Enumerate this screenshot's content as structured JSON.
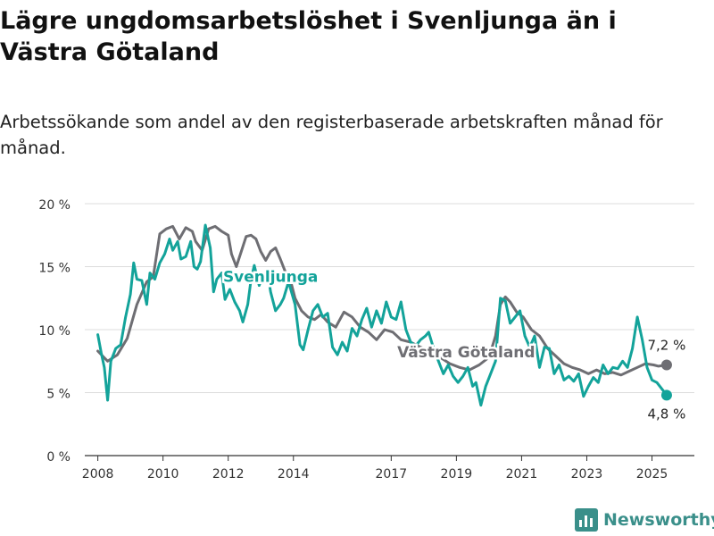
{
  "title": "Lägre ungdomsarbetslöshet i Svenljunga än i Västra Götaland",
  "subtitle": "Arbetssökande som andel av den registerbaserade arbetskraften månad för månad.",
  "brand": {
    "name": "Newsworthy",
    "color": "#3a8f8a"
  },
  "chart_data": {
    "type": "line",
    "x_unit": "year",
    "xlim": [
      2007.6,
      2026.3
    ],
    "ylim": [
      0,
      20
    ],
    "y_ticks": [
      0,
      5,
      10,
      15,
      20
    ],
    "y_tick_labels": [
      "0 %",
      "5 %",
      "10 %",
      "15 %",
      "20 %"
    ],
    "x_ticks": [
      2008,
      2010,
      2012,
      2014,
      2017,
      2019,
      2021,
      2023,
      2025
    ],
    "x_tick_labels": [
      "2008",
      "2010",
      "2012",
      "2014",
      "2017",
      "2019",
      "2021",
      "2023",
      "2025"
    ],
    "grid": "horizontal",
    "series": [
      {
        "name": "Västra Götaland",
        "color": "#6e6e73",
        "end_label": "7,2 %",
        "points": [
          [
            2008.0,
            8.3
          ],
          [
            2008.3,
            7.5
          ],
          [
            2008.6,
            8.0
          ],
          [
            2008.9,
            9.3
          ],
          [
            2009.2,
            12.0
          ],
          [
            2009.5,
            13.8
          ],
          [
            2009.7,
            14.2
          ],
          [
            2009.9,
            17.6
          ],
          [
            2010.1,
            18.0
          ],
          [
            2010.3,
            18.2
          ],
          [
            2010.5,
            17.2
          ],
          [
            2010.7,
            18.1
          ],
          [
            2010.9,
            17.8
          ],
          [
            2011.0,
            17.0
          ],
          [
            2011.2,
            16.3
          ],
          [
            2011.4,
            18.0
          ],
          [
            2011.6,
            18.2
          ],
          [
            2011.8,
            17.8
          ],
          [
            2012.0,
            17.5
          ],
          [
            2012.1,
            16.0
          ],
          [
            2012.25,
            15.0
          ],
          [
            2012.4,
            16.2
          ],
          [
            2012.55,
            17.4
          ],
          [
            2012.7,
            17.5
          ],
          [
            2012.85,
            17.2
          ],
          [
            2013.0,
            16.2
          ],
          [
            2013.15,
            15.5
          ],
          [
            2013.3,
            16.2
          ],
          [
            2013.45,
            16.5
          ],
          [
            2013.6,
            15.6
          ],
          [
            2013.75,
            14.6
          ],
          [
            2013.9,
            14.0
          ],
          [
            2014.05,
            12.5
          ],
          [
            2014.25,
            11.5
          ],
          [
            2014.45,
            11.0
          ],
          [
            2014.65,
            10.8
          ],
          [
            2014.85,
            11.2
          ],
          [
            2015.05,
            10.6
          ],
          [
            2015.3,
            10.2
          ],
          [
            2015.55,
            11.4
          ],
          [
            2015.8,
            11.0
          ],
          [
            2016.05,
            10.2
          ],
          [
            2016.3,
            9.8
          ],
          [
            2016.55,
            9.2
          ],
          [
            2016.8,
            10.0
          ],
          [
            2017.05,
            9.8
          ],
          [
            2017.3,
            9.2
          ],
          [
            2017.6,
            9.0
          ],
          [
            2017.9,
            8.6
          ],
          [
            2018.2,
            8.3
          ],
          [
            2018.5,
            7.8
          ],
          [
            2018.8,
            7.3
          ],
          [
            2019.1,
            7.0
          ],
          [
            2019.4,
            6.8
          ],
          [
            2019.7,
            7.2
          ],
          [
            2020.0,
            7.8
          ],
          [
            2020.2,
            9.5
          ],
          [
            2020.35,
            12.0
          ],
          [
            2020.5,
            12.6
          ],
          [
            2020.65,
            12.2
          ],
          [
            2020.85,
            11.4
          ],
          [
            2021.05,
            11.0
          ],
          [
            2021.3,
            10.0
          ],
          [
            2021.55,
            9.5
          ],
          [
            2021.8,
            8.5
          ],
          [
            2022.05,
            7.9
          ],
          [
            2022.3,
            7.3
          ],
          [
            2022.55,
            7.0
          ],
          [
            2022.8,
            6.8
          ],
          [
            2023.05,
            6.5
          ],
          [
            2023.3,
            6.8
          ],
          [
            2023.55,
            6.5
          ],
          [
            2023.8,
            6.6
          ],
          [
            2024.05,
            6.4
          ],
          [
            2024.3,
            6.7
          ],
          [
            2024.55,
            7.0
          ],
          [
            2024.8,
            7.3
          ],
          [
            2025.05,
            7.2
          ],
          [
            2025.2,
            7.1
          ],
          [
            2025.45,
            7.2
          ]
        ]
      },
      {
        "name": "Svenljunga",
        "color": "#13a39a",
        "end_label": "4,8 %",
        "points": [
          [
            2008.0,
            9.6
          ],
          [
            2008.1,
            8.2
          ],
          [
            2008.2,
            7.0
          ],
          [
            2008.3,
            4.4
          ],
          [
            2008.4,
            7.5
          ],
          [
            2008.55,
            8.5
          ],
          [
            2008.7,
            8.8
          ],
          [
            2008.85,
            11.0
          ],
          [
            2009.0,
            12.8
          ],
          [
            2009.1,
            15.3
          ],
          [
            2009.2,
            14.0
          ],
          [
            2009.35,
            13.9
          ],
          [
            2009.5,
            12.0
          ],
          [
            2009.6,
            14.5
          ],
          [
            2009.75,
            14.0
          ],
          [
            2009.9,
            15.3
          ],
          [
            2010.05,
            16.0
          ],
          [
            2010.2,
            17.2
          ],
          [
            2010.3,
            16.3
          ],
          [
            2010.45,
            17.0
          ],
          [
            2010.55,
            15.6
          ],
          [
            2010.7,
            15.8
          ],
          [
            2010.85,
            17.0
          ],
          [
            2010.95,
            15.0
          ],
          [
            2011.05,
            14.8
          ],
          [
            2011.15,
            15.4
          ],
          [
            2011.3,
            18.3
          ],
          [
            2011.45,
            16.5
          ],
          [
            2011.55,
            13.0
          ],
          [
            2011.65,
            14.0
          ],
          [
            2011.8,
            14.5
          ],
          [
            2011.9,
            12.4
          ],
          [
            2012.05,
            13.2
          ],
          [
            2012.2,
            12.2
          ],
          [
            2012.35,
            11.5
          ],
          [
            2012.45,
            10.6
          ],
          [
            2012.6,
            12.0
          ],
          [
            2012.7,
            14.0
          ],
          [
            2012.8,
            15.1
          ],
          [
            2012.95,
            13.5
          ],
          [
            2013.05,
            14.2
          ],
          [
            2013.2,
            14.7
          ],
          [
            2013.3,
            13.0
          ],
          [
            2013.45,
            11.5
          ],
          [
            2013.6,
            12.0
          ],
          [
            2013.7,
            12.5
          ],
          [
            2013.85,
            13.8
          ],
          [
            2014.05,
            12.0
          ],
          [
            2014.2,
            8.8
          ],
          [
            2014.3,
            8.4
          ],
          [
            2014.45,
            10.0
          ],
          [
            2014.6,
            11.5
          ],
          [
            2014.75,
            12.0
          ],
          [
            2014.9,
            11.0
          ],
          [
            2015.05,
            11.3
          ],
          [
            2015.2,
            8.6
          ],
          [
            2015.35,
            8.0
          ],
          [
            2015.5,
            9.0
          ],
          [
            2015.65,
            8.3
          ],
          [
            2015.8,
            10.1
          ],
          [
            2015.95,
            9.5
          ],
          [
            2016.1,
            10.8
          ],
          [
            2016.25,
            11.7
          ],
          [
            2016.4,
            10.2
          ],
          [
            2016.55,
            11.5
          ],
          [
            2016.7,
            10.5
          ],
          [
            2016.85,
            12.2
          ],
          [
            2017.0,
            11.0
          ],
          [
            2017.15,
            10.8
          ],
          [
            2017.3,
            12.2
          ],
          [
            2017.45,
            10.0
          ],
          [
            2017.6,
            9.0
          ],
          [
            2017.75,
            8.7
          ],
          [
            2017.9,
            9.2
          ],
          [
            2018.05,
            9.5
          ],
          [
            2018.15,
            9.8
          ],
          [
            2018.3,
            8.5
          ],
          [
            2018.45,
            7.5
          ],
          [
            2018.6,
            6.5
          ],
          [
            2018.75,
            7.2
          ],
          [
            2018.9,
            6.3
          ],
          [
            2019.05,
            5.8
          ],
          [
            2019.2,
            6.3
          ],
          [
            2019.35,
            7.0
          ],
          [
            2019.5,
            5.5
          ],
          [
            2019.6,
            5.8
          ],
          [
            2019.75,
            4.0
          ],
          [
            2019.9,
            5.5
          ],
          [
            2020.05,
            6.5
          ],
          [
            2020.2,
            7.5
          ],
          [
            2020.35,
            12.5
          ],
          [
            2020.5,
            12.3
          ],
          [
            2020.65,
            10.5
          ],
          [
            2020.8,
            11.0
          ],
          [
            2020.95,
            11.5
          ],
          [
            2021.1,
            9.5
          ],
          [
            2021.25,
            8.6
          ],
          [
            2021.4,
            9.5
          ],
          [
            2021.55,
            7.0
          ],
          [
            2021.7,
            8.6
          ],
          [
            2021.85,
            8.5
          ],
          [
            2022.0,
            6.5
          ],
          [
            2022.15,
            7.2
          ],
          [
            2022.3,
            6.0
          ],
          [
            2022.45,
            6.3
          ],
          [
            2022.6,
            5.9
          ],
          [
            2022.75,
            6.5
          ],
          [
            2022.9,
            4.7
          ],
          [
            2023.05,
            5.5
          ],
          [
            2023.2,
            6.2
          ],
          [
            2023.35,
            5.8
          ],
          [
            2023.5,
            7.2
          ],
          [
            2023.65,
            6.5
          ],
          [
            2023.8,
            7.0
          ],
          [
            2023.95,
            6.9
          ],
          [
            2024.1,
            7.5
          ],
          [
            2024.25,
            7.0
          ],
          [
            2024.4,
            8.5
          ],
          [
            2024.55,
            11.0
          ],
          [
            2024.7,
            9.2
          ],
          [
            2024.85,
            7.0
          ],
          [
            2025.0,
            6.0
          ],
          [
            2025.15,
            5.8
          ],
          [
            2025.45,
            4.8
          ]
        ]
      }
    ],
    "annotations": [
      {
        "text": "Svenljunga",
        "series": "Svenljunga",
        "at": [
          2013.3,
          13.8
        ]
      },
      {
        "text": "Västra Götaland",
        "series": "Västra Götaland",
        "at": [
          2019.3,
          7.8
        ]
      }
    ]
  }
}
